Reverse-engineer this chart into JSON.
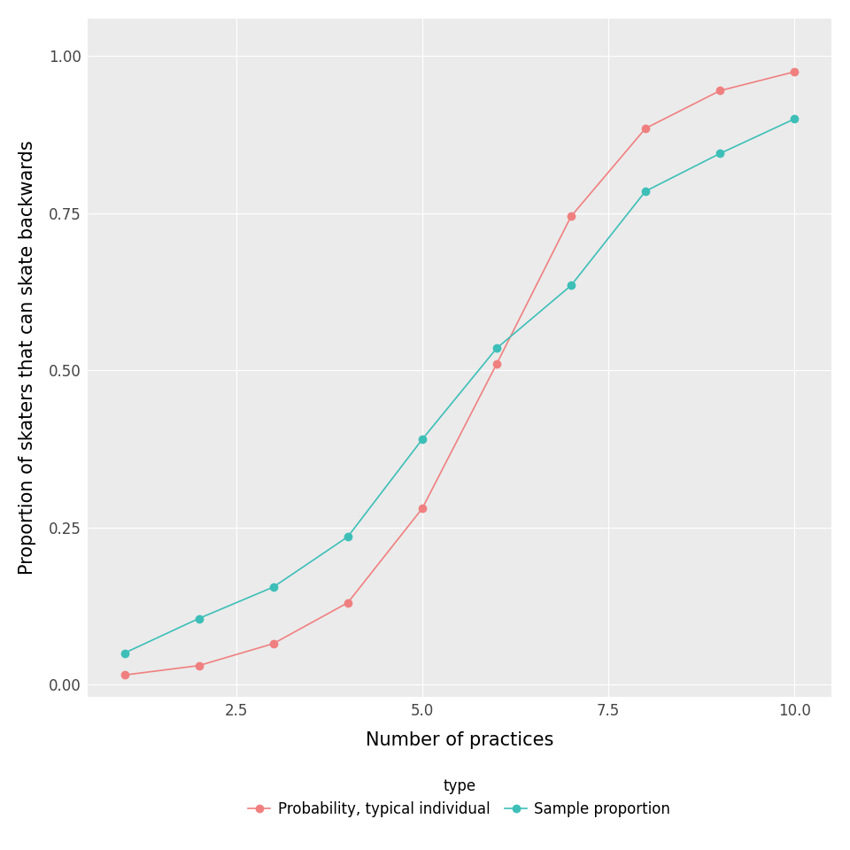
{
  "red_x": [
    1,
    2,
    3,
    4,
    5,
    6,
    7,
    8,
    9,
    10
  ],
  "red_y": [
    0.015,
    0.03,
    0.065,
    0.13,
    0.28,
    0.51,
    0.745,
    0.885,
    0.945,
    0.975
  ],
  "teal_x": [
    1,
    2,
    3,
    4,
    5,
    6,
    7,
    8,
    9,
    10
  ],
  "teal_y": [
    0.05,
    0.105,
    0.155,
    0.235,
    0.39,
    0.535,
    0.635,
    0.785,
    0.845,
    0.9
  ],
  "red_color": "#F08080",
  "teal_color": "#3DBFB8",
  "xlabel": "Number of practices",
  "ylabel": "Proportion of skaters that can skate backwards",
  "legend_title": "type",
  "legend_label_red": "Probability, typical individual",
  "legend_label_teal": "Sample proportion",
  "xlim": [
    0.5,
    10.5
  ],
  "ylim": [
    -0.02,
    1.06
  ],
  "xticks": [
    2.5,
    5.0,
    7.5,
    10.0
  ],
  "yticks": [
    0.0,
    0.25,
    0.5,
    0.75,
    1.0
  ],
  "plot_bg_color": "#EBEBEB",
  "fig_bg_color": "#FFFFFF",
  "grid_color": "#FFFFFF",
  "axis_label_fontsize": 15,
  "tick_fontsize": 12,
  "legend_fontsize": 12,
  "marker_size": 6,
  "line_width": 1.2
}
